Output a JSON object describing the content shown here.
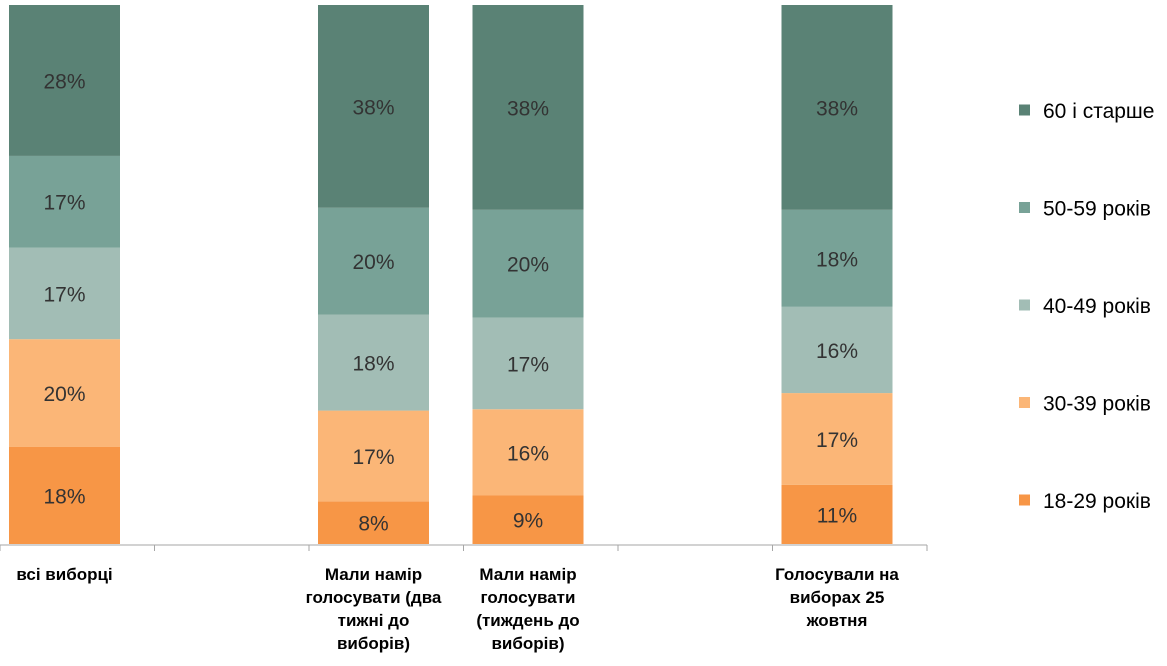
{
  "chart_data": {
    "type": "bar",
    "stacked": true,
    "categories": [
      "всі виборці",
      "",
      "Мали намір голосувати (два тижні до виборів)",
      "Мали намір голосувати (тиждень до виборів)",
      "",
      "Голосували на виборах 25 жовтня"
    ],
    "category_lines": [
      [
        "всі виборці"
      ],
      [],
      [
        "Мали намір",
        "голосувати (два",
        "тижні до",
        "виборів)"
      ],
      [
        "Мали намір",
        "голосувати",
        "(тиждень до",
        "виборів)"
      ],
      [],
      [
        "Голосували на",
        "виборах 25",
        "жовтня"
      ]
    ],
    "series": [
      {
        "name": "18-29 років",
        "color": "#f79646",
        "values": [
          18,
          null,
          8,
          9,
          null,
          11
        ],
        "labels": [
          "18%",
          "",
          "8%",
          "9%",
          "",
          "11%"
        ]
      },
      {
        "name": "30-39 років",
        "color": "#fbb677",
        "values": [
          20,
          null,
          17,
          16,
          null,
          17
        ],
        "labels": [
          "20%",
          "",
          "17%",
          "16%",
          "",
          "17%"
        ]
      },
      {
        "name": "40-49 років",
        "color": "#a2bdb5",
        "values": [
          17,
          null,
          18,
          17,
          null,
          16
        ],
        "labels": [
          "17%",
          "",
          "18%",
          "17%",
          "",
          "16%"
        ]
      },
      {
        "name": "50-59 років",
        "color": "#78a297",
        "values": [
          17,
          null,
          20,
          20,
          null,
          18
        ],
        "labels": [
          "17%",
          "",
          "20%",
          "20%",
          "",
          "18%"
        ]
      },
      {
        "name": "60 і старше",
        "color": "#5a8275",
        "values": [
          28,
          null,
          38,
          38,
          null,
          38
        ],
        "labels": [
          "28%",
          "",
          "38%",
          "38%",
          "",
          "38%"
        ]
      }
    ],
    "ylim": [
      0,
      100
    ],
    "legend_position": "right",
    "grid": false
  }
}
